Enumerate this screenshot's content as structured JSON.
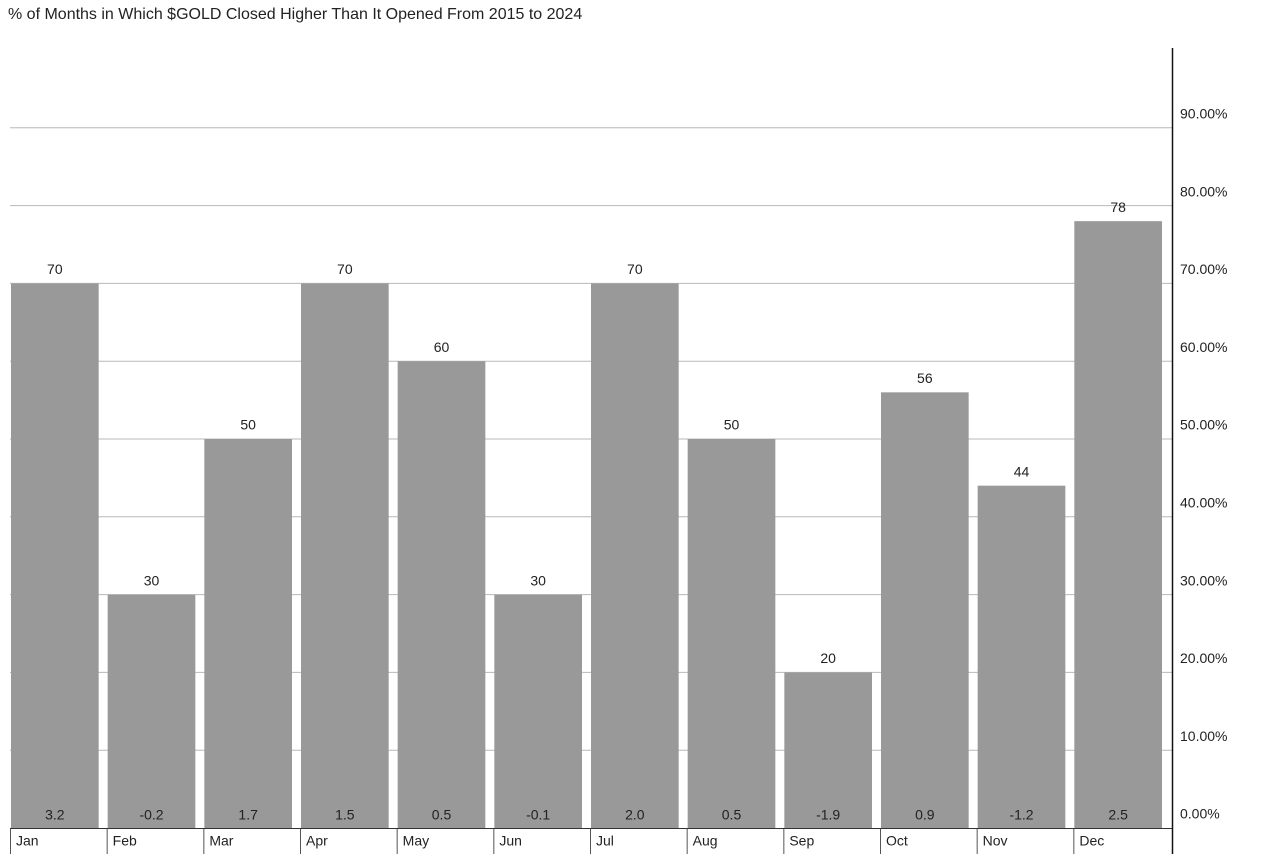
{
  "chart_data": {
    "type": "bar",
    "title": "% of Months in Which $GOLD Closed Higher Than It Opened From 2015 to 2024",
    "categories": [
      "Jan",
      "Feb",
      "Mar",
      "Apr",
      "May",
      "Jun",
      "Jul",
      "Aug",
      "Sep",
      "Oct",
      "Nov",
      "Dec"
    ],
    "values": [
      70,
      30,
      50,
      70,
      60,
      30,
      70,
      50,
      20,
      56,
      44,
      78
    ],
    "annotations": [
      "3.2",
      "-0.2",
      "1.7",
      "1.5",
      "0.5",
      "-0.1",
      "2.0",
      "0.5",
      "-1.9",
      "0.9",
      "-1.2",
      "2.5"
    ],
    "color": "#999999",
    "ylim": [
      0,
      100
    ],
    "yticks": [
      {
        "value": 0,
        "label": "0.00%"
      },
      {
        "value": 10,
        "label": "10.00%"
      },
      {
        "value": 20,
        "label": "20.00%"
      },
      {
        "value": 30,
        "label": "30.00%"
      },
      {
        "value": 40,
        "label": "40.00%"
      },
      {
        "value": 50,
        "label": "50.00%"
      },
      {
        "value": 60,
        "label": "60.00%"
      },
      {
        "value": 70,
        "label": "70.00%"
      },
      {
        "value": 80,
        "label": "80.00%"
      },
      {
        "value": 90,
        "label": "90.00%"
      }
    ],
    "grid": true
  }
}
